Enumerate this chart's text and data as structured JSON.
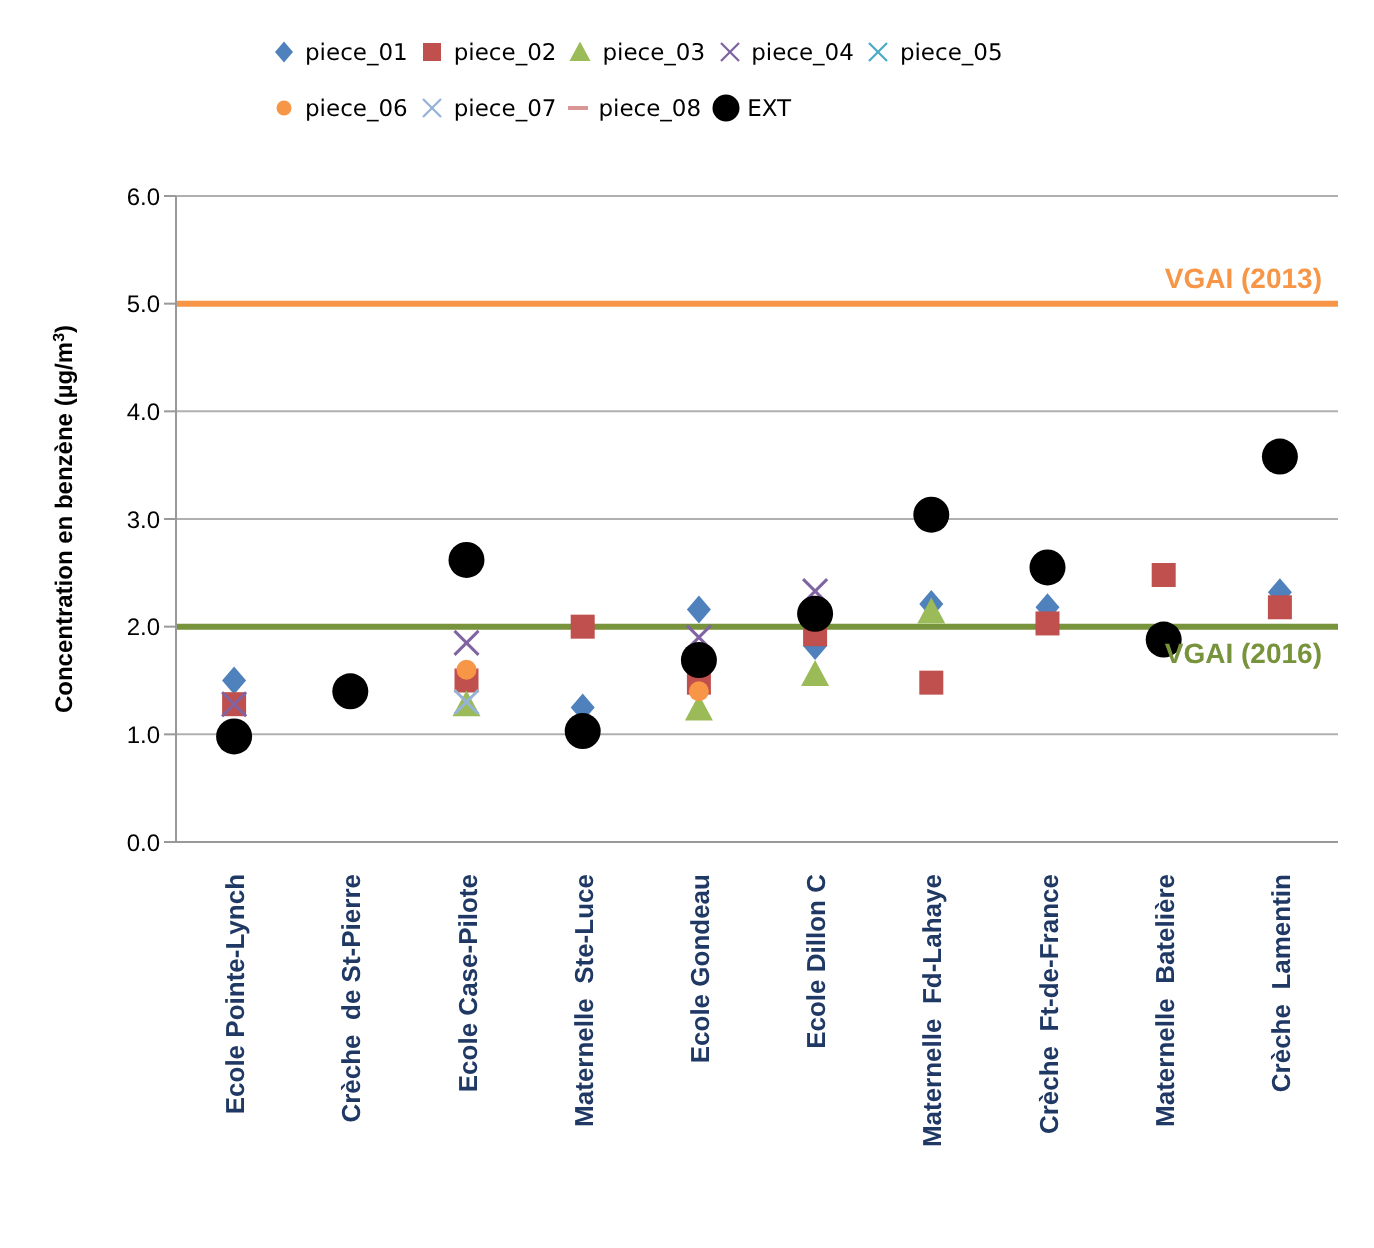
{
  "chart_data": {
    "type": "scatter",
    "ylabel": "Concentration en benzène (µg/m$^{3}$)",
    "categories": [
      "Ecole Pointe-Lynch",
      "Crèche  de St-Pierre",
      "Ecole Case-Pilote",
      "Maternelle  Ste-Luce",
      "Ecole Gondeau",
      "Ecole Dillon C",
      "Maternelle  Fd-Lahaye",
      "Crèche  Ft-de-France",
      "Maternelle  Batelière",
      "Crèche  Lamentin"
    ],
    "ylim": [
      0,
      6
    ],
    "yticks": [
      {
        "value": 0,
        "label": "0.0"
      },
      {
        "value": 1,
        "label": "1.0"
      },
      {
        "value": 2,
        "label": "2.0"
      },
      {
        "value": 3,
        "label": "3.0"
      },
      {
        "value": 4,
        "label": "4.0"
      },
      {
        "value": 5,
        "label": "5.0"
      },
      {
        "value": 6,
        "label": "6.0"
      }
    ],
    "grid": "y",
    "legend": "top",
    "series": [
      {
        "name": "piece_01",
        "color": "#4f81bd",
        "marker": "diamond",
        "values": [
          1.5,
          null,
          null,
          1.25,
          2.16,
          1.82,
          2.21,
          2.18,
          null,
          2.32
        ]
      },
      {
        "name": "piece_02",
        "color": "#c0504d",
        "marker": "square",
        "values": [
          1.28,
          null,
          1.5,
          2.0,
          1.48,
          1.93,
          1.48,
          2.03,
          2.48,
          2.18
        ]
      },
      {
        "name": "piece_03",
        "color": "#9bbb59",
        "marker": "triangle",
        "values": [
          null,
          null,
          1.28,
          null,
          1.24,
          1.56,
          2.14,
          null,
          null,
          null
        ]
      },
      {
        "name": "piece_04",
        "color": "#8064a2",
        "marker": "cross",
        "values": [
          1.28,
          null,
          1.85,
          null,
          1.9,
          2.33,
          null,
          null,
          null,
          null
        ]
      },
      {
        "name": "piece_05",
        "color": "#4bacc6",
        "marker": "cross",
        "values": [
          null,
          null,
          null,
          null,
          null,
          null,
          null,
          null,
          null,
          null
        ]
      },
      {
        "name": "piece_06",
        "color": "#f79646",
        "marker": "circle",
        "values": [
          null,
          null,
          1.6,
          null,
          1.4,
          null,
          null,
          null,
          null,
          null
        ]
      },
      {
        "name": "piece_07",
        "color": "#95b3d7",
        "marker": "cross",
        "values": [
          null,
          null,
          1.3,
          null,
          null,
          null,
          null,
          null,
          null,
          null
        ]
      },
      {
        "name": "piece_08",
        "color": "#d99694",
        "marker": "none",
        "values": [
          null,
          null,
          null,
          null,
          null,
          null,
          null,
          null,
          null,
          null
        ]
      },
      {
        "name": "EXT",
        "color": "#000000",
        "marker": "circle",
        "values": [
          0.98,
          1.4,
          2.62,
          1.03,
          1.69,
          2.12,
          3.04,
          2.55,
          1.88,
          3.58
        ]
      }
    ],
    "ref_lines": [
      {
        "axis": "y",
        "value": 5.0,
        "label": "VGAI (2013)",
        "color": "#f79646"
      },
      {
        "axis": "y",
        "value": 2.0,
        "label": "VGAI (2016)",
        "color": "#77933c"
      }
    ]
  }
}
